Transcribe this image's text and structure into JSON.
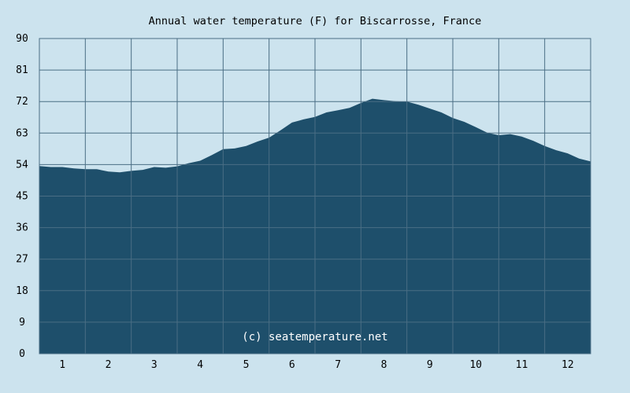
{
  "chart_data": {
    "type": "area",
    "title": "Annual water temperature (F) for Biscarrosse, France",
    "xlabel": "",
    "ylabel": "",
    "xlim": [
      0.5,
      12.5
    ],
    "ylim": [
      0,
      90
    ],
    "y_ticks": [
      0,
      9,
      18,
      27,
      36,
      45,
      54,
      63,
      72,
      81,
      90
    ],
    "x_ticks": [
      1,
      2,
      3,
      4,
      5,
      6,
      7,
      8,
      9,
      10,
      11,
      12
    ],
    "grid": true,
    "fill_color": "#1e4f6b",
    "grid_color": "#4a6e84",
    "background_color": "#cce3ee",
    "x": [
      0.5,
      0.75,
      1.0,
      1.25,
      1.5,
      1.75,
      2.0,
      2.25,
      2.5,
      2.75,
      3.0,
      3.25,
      3.5,
      3.75,
      4.0,
      4.25,
      4.5,
      4.75,
      5.0,
      5.25,
      5.5,
      5.75,
      6.0,
      6.25,
      6.5,
      6.75,
      7.0,
      7.25,
      7.5,
      7.75,
      8.0,
      8.25,
      8.5,
      8.75,
      9.0,
      9.25,
      9.5,
      9.75,
      10.0,
      10.25,
      10.5,
      10.75,
      11.0,
      11.25,
      11.5,
      11.75,
      12.0,
      12.25,
      12.5
    ],
    "values": [
      53.6,
      53.3,
      53.3,
      52.9,
      52.7,
      52.7,
      52.0,
      51.8,
      52.2,
      52.5,
      53.3,
      53.1,
      53.5,
      54.4,
      55.1,
      56.7,
      58.4,
      58.6,
      59.3,
      60.6,
      61.7,
      63.8,
      66.0,
      66.9,
      67.6,
      68.9,
      69.5,
      70.2,
      71.6,
      72.8,
      72.4,
      72.1,
      72.0,
      71.1,
      70.0,
      68.9,
      67.3,
      66.2,
      64.7,
      63.1,
      62.4,
      62.7,
      62.0,
      60.8,
      59.3,
      58.1,
      57.2,
      55.7,
      54.9
    ],
    "watermark": "(c) seatemperature.net"
  }
}
